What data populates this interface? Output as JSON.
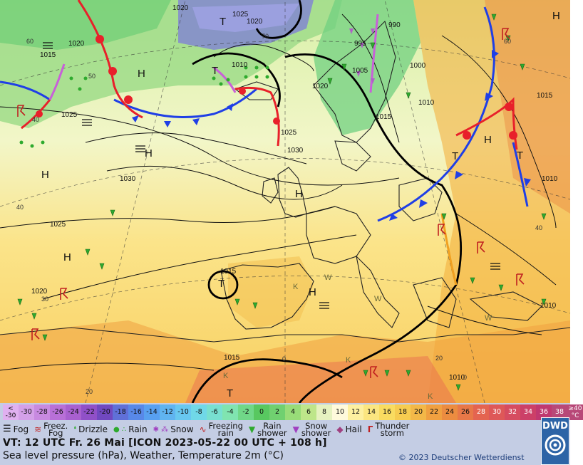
{
  "map": {
    "isobar_labels": [
      "1020",
      "1025",
      "1020",
      "990",
      "995",
      "1005",
      "1000",
      "1010",
      "1020",
      "1015",
      "1010",
      "1025",
      "1030",
      "1030",
      "1025",
      "1015",
      "1020",
      "1015",
      "1010",
      "1015",
      "1010",
      "1010",
      "1015",
      "1020",
      "1025"
    ],
    "pressure_centres": [
      "H",
      "H",
      "H",
      "H",
      "H",
      "H",
      "H",
      "H",
      "T",
      "T",
      "T",
      "T",
      "T",
      "T"
    ],
    "temperature_labels": [
      "60",
      "50",
      "40",
      "40",
      "30",
      "20",
      "0",
      "0",
      "60",
      "40",
      "70",
      "20"
    ],
    "extra_labels": [
      "W",
      "W",
      "W",
      "K",
      "K",
      "K",
      "K"
    ]
  },
  "colorscale": {
    "first_label_top": "<",
    "first_label_bottom": "-30",
    "values": [
      "-30",
      "-28",
      "-26",
      "-24",
      "-22",
      "-20",
      "-18",
      "-16",
      "-14",
      "-12",
      "-10",
      "-8",
      "-6",
      "-4",
      "-2",
      "0",
      "2",
      "4",
      "6",
      "8",
      "10",
      "12",
      "14",
      "16",
      "18",
      "20",
      "22",
      "24",
      "26",
      "28",
      "30",
      "32",
      "34",
      "36",
      "38"
    ],
    "last_label_top": "≥40",
    "last_label_bottom": "°C",
    "colors": [
      "#d4a0e8",
      "#c88ae0",
      "#b870d8",
      "#a860d0",
      "#9050c8",
      "#7048c0",
      "#6070d8",
      "#5888e8",
      "#58a0f0",
      "#60b4f0",
      "#68c8f0",
      "#70d8e8",
      "#78e0d0",
      "#80e4b0",
      "#70d888",
      "#58c860",
      "#70d070",
      "#98dc78",
      "#bee68a",
      "#e6f2c0",
      "#fffadc",
      "#fdf0a0",
      "#fbe680",
      "#f9dc60",
      "#f6cc50",
      "#f3b848",
      "#f0a040",
      "#ec8c40",
      "#e87848",
      "#e46450",
      "#de5858",
      "#d64c60",
      "#cc4068",
      "#c03870",
      "#b84878"
    ]
  },
  "weather_legend": {
    "fog": "Fog",
    "freezing_fog_1": "Freez.",
    "freezing_fog_2": "Fog",
    "drizzle": "Drizzle",
    "rain": "Rain",
    "snow": "Snow",
    "freezing_rain_1": "Freezing",
    "freezing_rain_2": "rain",
    "rain_shower_1": "Rain",
    "rain_shower_2": "shower",
    "snow_shower_1": "Snow",
    "snow_shower_2": "shower",
    "hail": "Hail",
    "thunderstorm_1": "Thunder",
    "thunderstorm_2": "storm"
  },
  "valid_time": "VT: 12 UTC Fr.  26 Mai [ICON 2023-05-22  00 UTC + 108 h]",
  "description": "Sea level pressure (hPa), Weather, Temperature 2m (°C)",
  "copyright": "© 2023 Deutscher Wetterdienst",
  "logo_text": "DWD"
}
